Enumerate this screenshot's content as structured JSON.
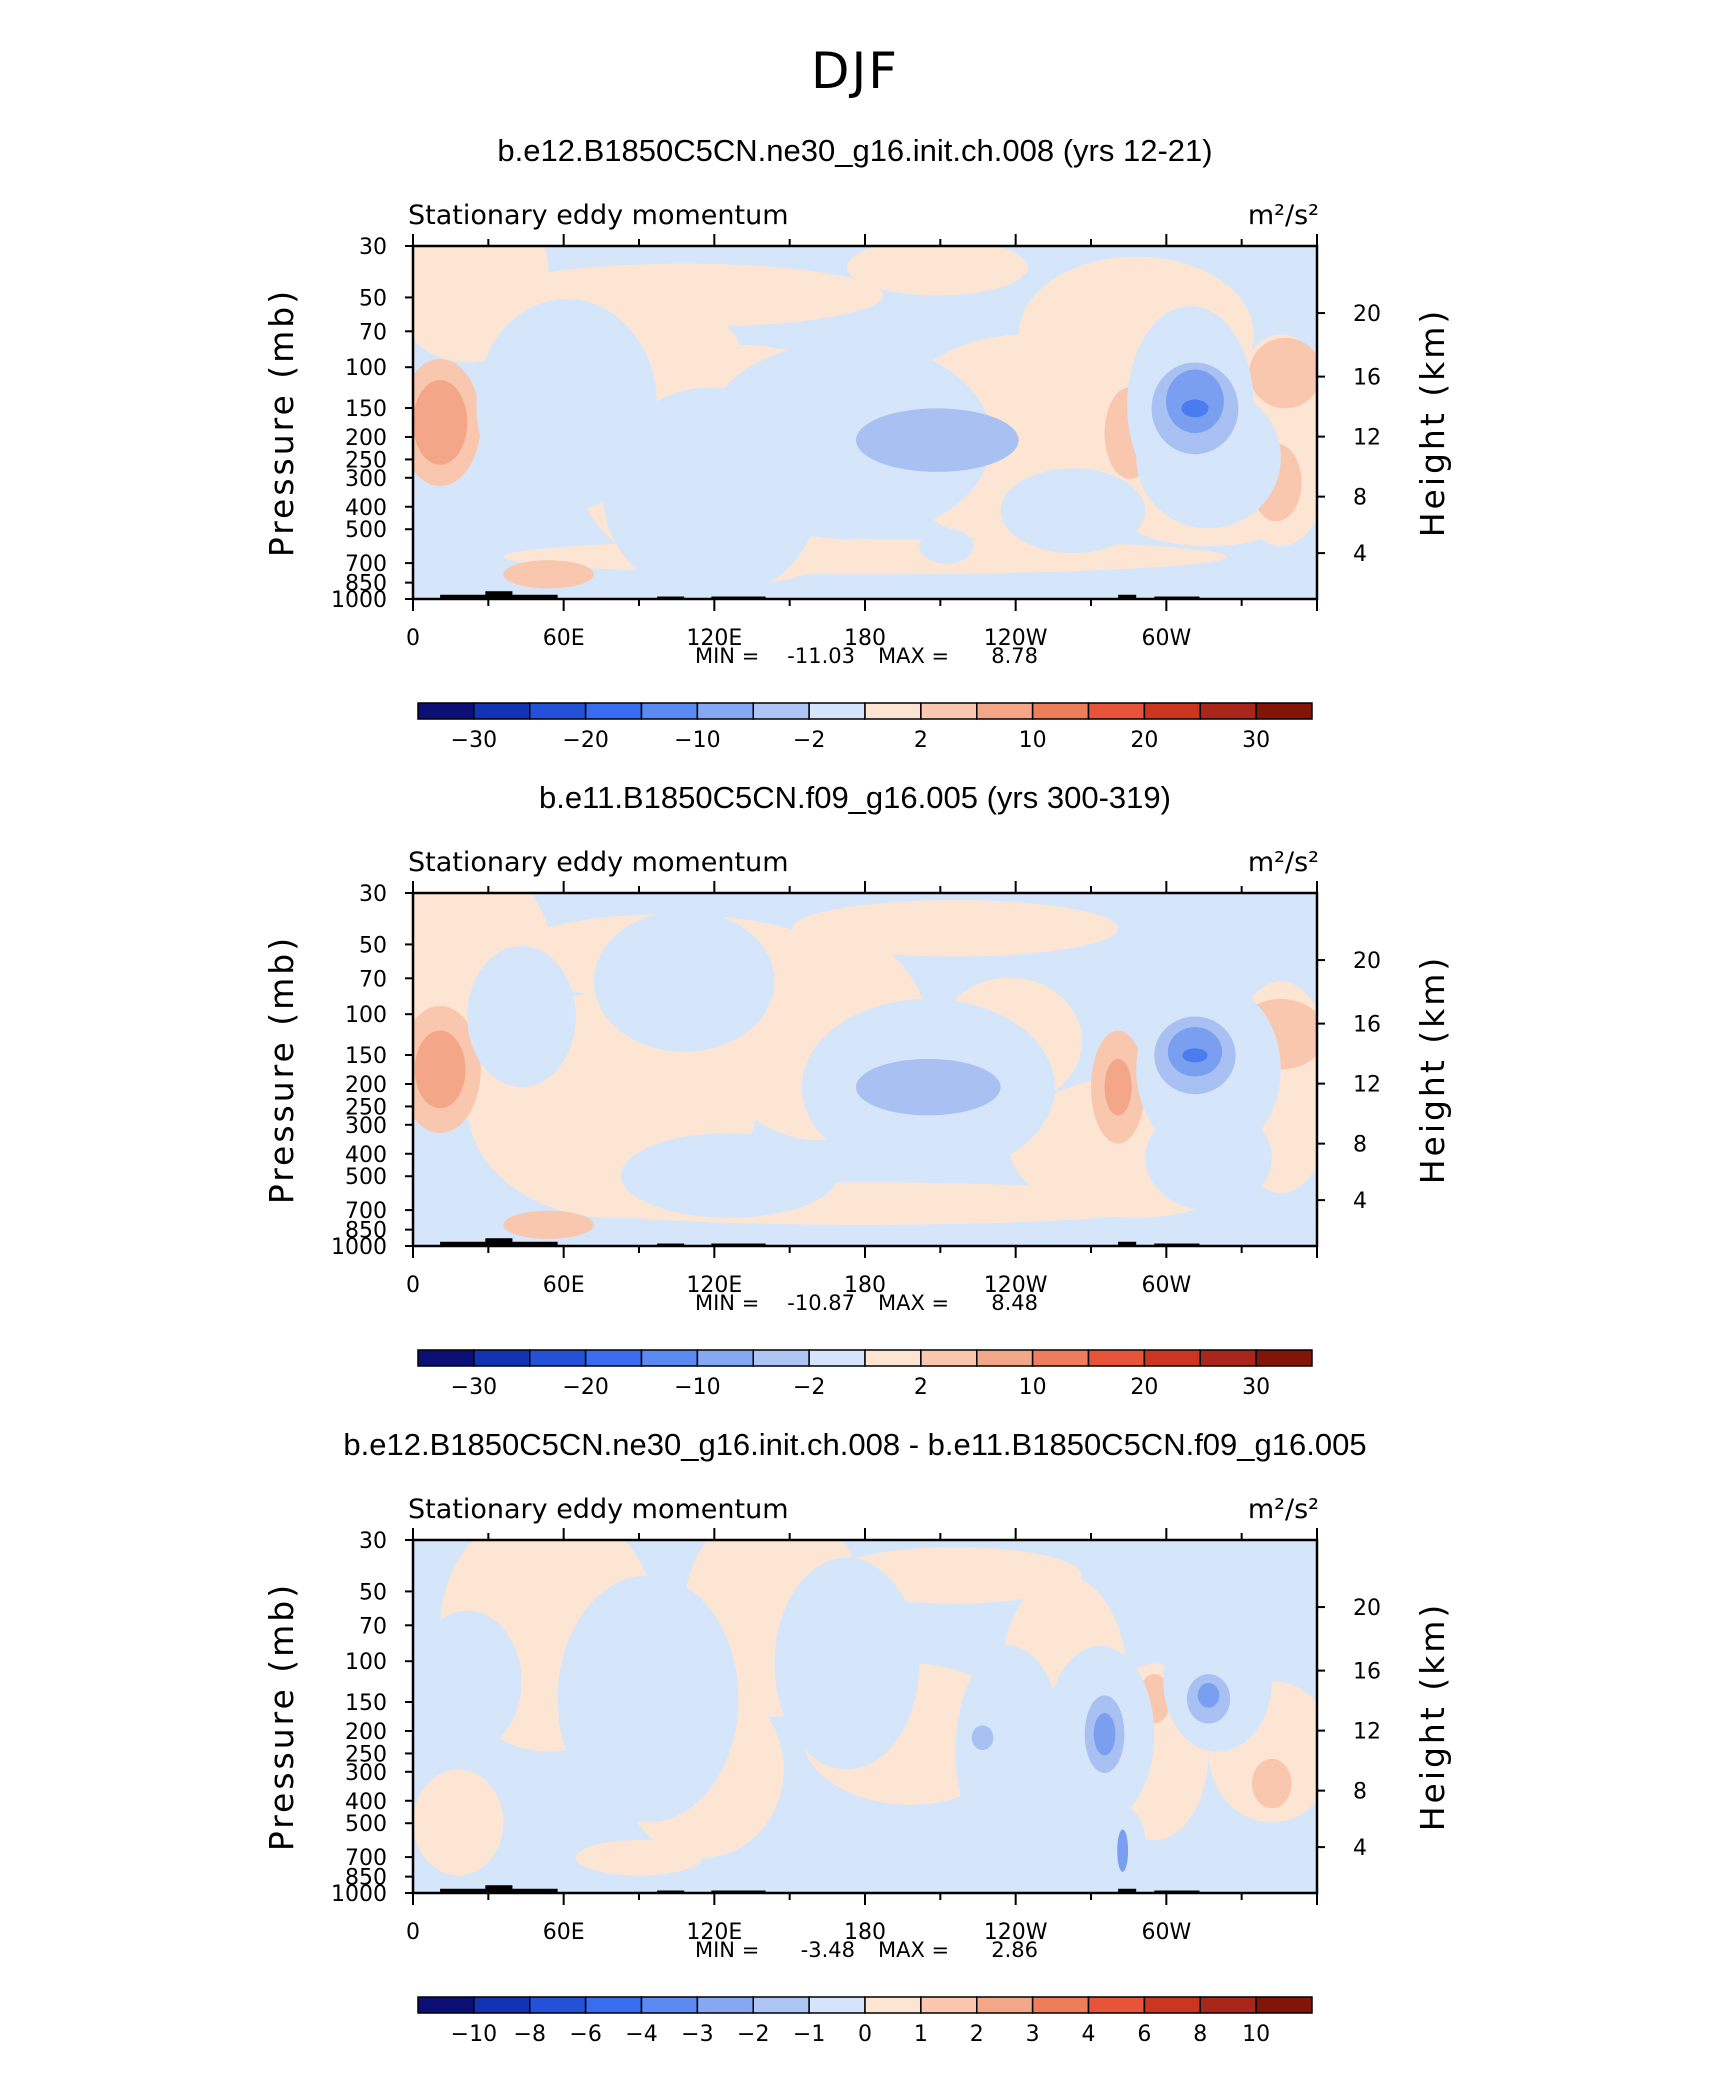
{
  "title": "DJF",
  "chart_data": [
    {
      "type": "heatmap",
      "title": "b.e12.B1850C5CN.ne30_g16.init.ch.008 (yrs 12-21)",
      "subtitle_left": "Stationary eddy momentum",
      "units": "m²/s²",
      "ylabel": "Pressure (mb)",
      "ylabel_right": "Height (km)",
      "xticks": [
        "0",
        "60E",
        "120E",
        "180",
        "120W",
        "60W"
      ],
      "yticks": [
        "30",
        "50",
        "70",
        "100",
        "150",
        "200",
        "250",
        "300",
        "400",
        "500",
        "700",
        "850",
        "1000"
      ],
      "yticks_right": [
        "20",
        "16",
        "12",
        "8",
        "4"
      ],
      "stats": {
        "min_label": "MIN =",
        "min": "-11.03",
        "max_label": "MAX =",
        "max": "8.78"
      },
      "colorbar_labels": [
        "−30",
        "−20",
        "−10",
        "−2",
        "2",
        "10",
        "20",
        "30"
      ]
    },
    {
      "type": "heatmap",
      "title": "b.e11.B1850C5CN.f09_g16.005 (yrs 300-319)",
      "subtitle_left": "Stationary eddy momentum",
      "units": "m²/s²",
      "ylabel": "Pressure (mb)",
      "ylabel_right": "Height (km)",
      "xticks": [
        "0",
        "60E",
        "120E",
        "180",
        "120W",
        "60W"
      ],
      "yticks": [
        "30",
        "50",
        "70",
        "100",
        "150",
        "200",
        "250",
        "300",
        "400",
        "500",
        "700",
        "850",
        "1000"
      ],
      "yticks_right": [
        "20",
        "16",
        "12",
        "8",
        "4"
      ],
      "stats": {
        "min_label": "MIN =",
        "min": "-10.87",
        "max_label": "MAX =",
        "max": "8.48"
      },
      "colorbar_labels": [
        "−30",
        "−20",
        "−10",
        "−2",
        "2",
        "10",
        "20",
        "30"
      ]
    },
    {
      "type": "heatmap",
      "title": "b.e12.B1850C5CN.ne30_g16.init.ch.008 - b.e11.B1850C5CN.f09_g16.005",
      "subtitle_left": "Stationary eddy momentum",
      "units": "m²/s²",
      "ylabel": "Pressure (mb)",
      "ylabel_right": "Height (km)",
      "xticks": [
        "0",
        "60E",
        "120E",
        "180",
        "120W",
        "60W"
      ],
      "yticks": [
        "30",
        "50",
        "70",
        "100",
        "150",
        "200",
        "250",
        "300",
        "400",
        "500",
        "700",
        "850",
        "1000"
      ],
      "yticks_right": [
        "20",
        "16",
        "12",
        "8",
        "4"
      ],
      "stats": {
        "min_label": "MIN =",
        "min": "-3.48",
        "max_label": "MAX =",
        "max": "2.86"
      },
      "colorbar_labels": [
        "−10",
        "−8",
        "−6",
        "−4",
        "−3",
        "−2",
        "−1",
        "0",
        "1",
        "2",
        "3",
        "4",
        "6",
        "8",
        "10"
      ]
    }
  ],
  "colors": {
    "bins": [
      "#0c0f76",
      "#1333b5",
      "#2b5ce6",
      "#4a7cf0",
      "#7a9ff0",
      "#a9c0f3",
      "#d5e6fb",
      "#fde5d4",
      "#f9c7ad",
      "#f4a688",
      "#ee7d5c",
      "#e8543a",
      "#cc3520",
      "#a9261a",
      "#821408"
    ]
  }
}
